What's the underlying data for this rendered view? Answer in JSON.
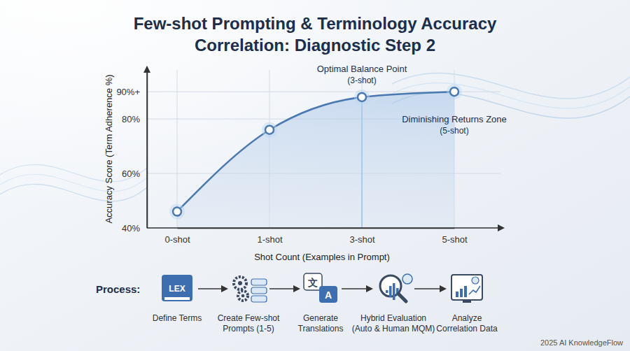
{
  "chart_data": {
    "type": "line",
    "title": [
      "Few-shot Prompting & Terminology Accuracy",
      "Correlation: Diagnostic Step 2"
    ],
    "x_label": "Shot Count (Examples in Prompt)",
    "y_label": "Accuracy Score (Term Adherence %)",
    "categories": [
      "0-shot",
      "1-shot",
      "3-shot",
      "5-shot"
    ],
    "values": [
      46,
      76,
      88,
      90
    ],
    "color": "#4a78b0",
    "ylim": [
      40,
      98
    ],
    "yticks": [
      {
        "value": 40,
        "label": "40%"
      },
      {
        "value": 60,
        "label": "60%"
      },
      {
        "value": 80,
        "label": "80%"
      },
      {
        "value": 90,
        "label": "90%+"
      }
    ],
    "grid": true,
    "annotations": [
      {
        "text": "Optimal Balance Point",
        "detail": "(3-shot)",
        "category": "3-shot"
      },
      {
        "text": "Diminishing Returns Zone",
        "detail": "(5-shot)",
        "category": "5-shot"
      }
    ]
  },
  "process": {
    "label": "Process:",
    "steps": [
      {
        "label": [
          "Define Terms"
        ],
        "icon_text": "LEX"
      },
      {
        "label": [
          "Create Few-shot",
          "Prompts (1-5)"
        ]
      },
      {
        "label": [
          "Generate",
          "Translations"
        ],
        "icon_text": [
          "文",
          "A"
        ]
      },
      {
        "label": [
          "Hybrid Evaluation",
          "(Auto & Human MQM)"
        ]
      },
      {
        "label": [
          "Analyze",
          "Correlation Data"
        ]
      }
    ]
  },
  "footer": "2025 AI KnowledgeFlow"
}
